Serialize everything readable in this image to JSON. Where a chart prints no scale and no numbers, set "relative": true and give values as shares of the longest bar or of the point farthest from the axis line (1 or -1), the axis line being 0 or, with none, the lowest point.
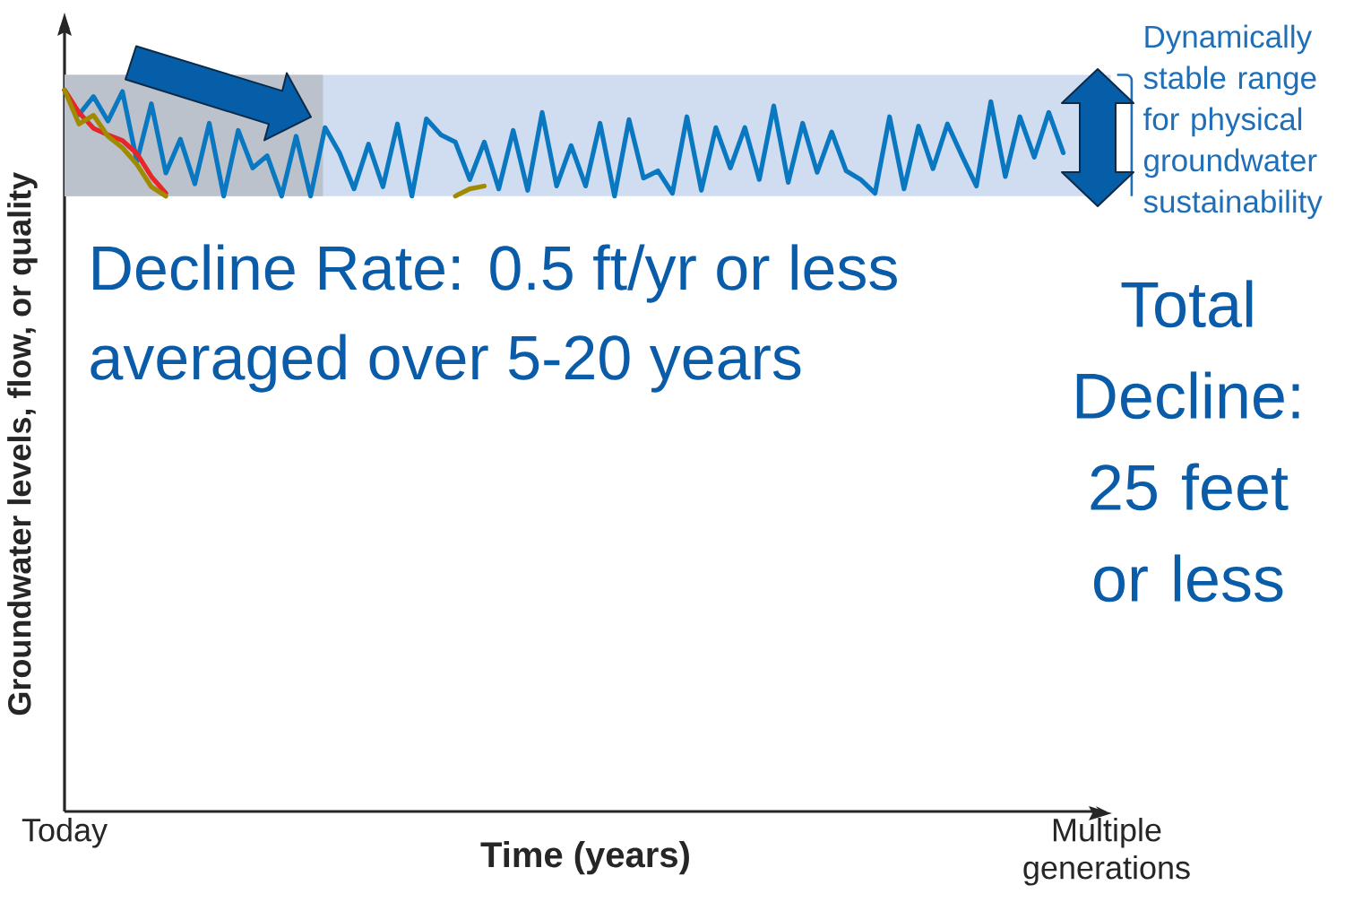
{
  "chart_data": {
    "type": "line",
    "relative": true,
    "xlabel": "Time (years)",
    "ylabel": "Groundwater levels, flow, or quality",
    "categories": [
      "Today",
      null,
      null,
      null,
      null,
      null,
      null,
      null,
      null,
      null,
      null,
      null,
      null,
      null,
      null,
      null,
      null,
      null,
      null,
      null,
      null,
      null,
      null,
      null,
      null,
      null,
      null,
      null,
      null,
      null,
      null,
      null,
      null,
      null,
      null,
      null,
      null,
      null,
      null,
      null,
      null,
      null,
      null,
      null,
      null,
      null,
      null,
      null,
      null,
      null,
      null,
      null,
      null,
      null,
      null,
      null,
      null,
      null,
      null,
      null,
      null,
      null,
      null,
      null,
      null,
      null,
      null,
      null,
      null,
      null,
      null,
      null,
      "Multiple generations"
    ],
    "annotations": [
      "Decline Rate: 0.5 ft/yr or less averaged over 5-20 years",
      "Total Decline: 25 feet or less"
    ],
    "bands": [
      {
        "axis": "y",
        "from": 0.853,
        "to": 1.021,
        "color": "#d0dcef",
        "label": "Dynamically stable range for physical groundwater sustainability"
      }
    ],
    "series": [
      {
        "color": "#0a78c0",
        "values": [
          1.0,
          0.966,
          0.991,
          0.957,
          0.998,
          0.901,
          0.981,
          0.885,
          0.932,
          0.87,
          0.954,
          0.853,
          0.944,
          0.892,
          0.909,
          0.853,
          0.936,
          0.853,
          0.948,
          0.913,
          0.863,
          0.925,
          0.866,
          0.953,
          0.853,
          0.96,
          0.938,
          0.928,
          0.876,
          0.928,
          0.863,
          0.944,
          0.861,
          0.969,
          0.867,
          0.923,
          0.867,
          0.954,
          0.853,
          0.959,
          0.878,
          0.888,
          0.857,
          0.963,
          0.861,
          0.948,
          0.892,
          0.948,
          0.876,
          0.978,
          0.872,
          0.954,
          0.886,
          0.942,
          0.888,
          0.876,
          0.857,
          0.963,
          0.863,
          0.95,
          0.891,
          0.953,
          0.909,
          0.867,
          0.984,
          0.88,
          0.963,
          0.907,
          0.969,
          0.913,
          null,
          null,
          null
        ]
      },
      {
        "color": "#e8262a",
        "values": [
          1.0,
          0.969,
          0.947,
          0.938,
          0.93,
          0.912,
          0.88,
          0.857,
          null,
          null,
          null,
          null,
          null,
          null,
          null,
          null,
          null,
          null,
          null,
          null,
          null,
          null,
          null,
          null,
          null,
          null,
          null,
          null,
          null,
          null,
          null,
          null,
          null,
          null,
          null,
          null,
          null,
          null,
          null,
          null,
          null,
          null,
          null,
          null,
          null,
          null,
          null,
          null,
          null,
          null,
          null,
          null,
          null,
          null,
          null,
          null,
          null,
          null,
          null,
          null,
          null,
          null,
          null,
          null,
          null,
          null,
          null,
          null,
          null,
          null,
          null,
          null,
          null
        ]
      },
      {
        "color": "#a08a00",
        "values": [
          1.0,
          0.953,
          0.965,
          0.936,
          0.92,
          0.897,
          0.866,
          0.853,
          null,
          null,
          null,
          null,
          null,
          null,
          null,
          null,
          null,
          null,
          null,
          null,
          null,
          null,
          null,
          null,
          null,
          null,
          null,
          0.853,
          0.863,
          0.867,
          null,
          null,
          null,
          null,
          null,
          null,
          null,
          null,
          null,
          null,
          null,
          null,
          null,
          null,
          null,
          null,
          null,
          null,
          null,
          null,
          null,
          null,
          null,
          null,
          null,
          null,
          null,
          null,
          null,
          null,
          null,
          null,
          null,
          null,
          null,
          null,
          null,
          null,
          null,
          null,
          null,
          null,
          null
        ]
      }
    ]
  }
}
